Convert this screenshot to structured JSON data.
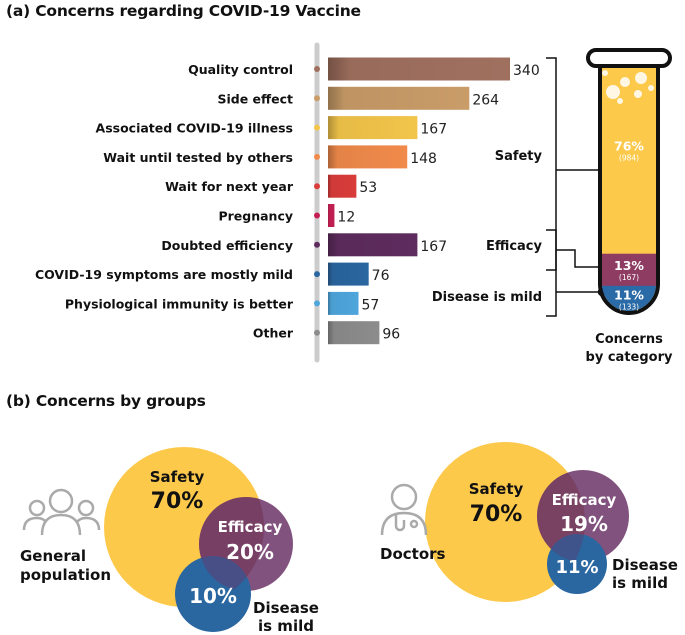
{
  "panel_a_title": "(a) Concerns regarding COVID-19 Vaccine",
  "panel_b_title": "(b) Concerns by groups",
  "chart_data": [
    {
      "type": "bar",
      "orientation": "horizontal",
      "title": "Concerns regarding COVID-19 Vaccine",
      "categories": [
        "Quality control",
        "Side effect",
        "Associated COVID-19 illness",
        "Wait until tested by others",
        "Wait for next year",
        "Pregnancy",
        "Doubted efficiency",
        "COVID-19 symptoms are mostly mild",
        "Physiological immunity is better",
        "Other"
      ],
      "values": [
        340,
        264,
        167,
        148,
        53,
        12,
        167,
        76,
        57,
        96
      ],
      "colors": [
        "#a0705f",
        "#c99c68",
        "#f2c54a",
        "#f08a4b",
        "#d93c3a",
        "#c41f52",
        "#5e2c5e",
        "#2a66a0",
        "#4ea6dc",
        "#8c8c8c"
      ],
      "xlim": [
        0,
        340
      ]
    },
    {
      "type": "bar",
      "title": "Concerns by category",
      "caption_line1": "Concerns",
      "caption_line2": "by category",
      "categories": [
        "Safety",
        "Efficacy",
        "Disease is mild"
      ],
      "percent_labels": [
        "76%",
        "13%",
        "11%"
      ],
      "count_labels": [
        "(984)",
        "(167)",
        "(133)"
      ],
      "percents": [
        76,
        13,
        11
      ],
      "counts": [
        984,
        167,
        133
      ],
      "colors": [
        "#fcc94b",
        "#8e3c62",
        "#2a6aa6"
      ]
    },
    {
      "type": "venn",
      "group": "General population",
      "group_line1": "General",
      "group_line2": "population",
      "sets": [
        {
          "name": "Safety",
          "percent": 70,
          "percent_label": "70%",
          "color": "#fcc94b"
        },
        {
          "name": "Efficacy",
          "percent": 20,
          "percent_label": "20%",
          "color": "#6b3466"
        },
        {
          "name": "Disease is mild",
          "name_line1": "Disease",
          "name_line2": "is mild",
          "percent": 10,
          "percent_label": "10%",
          "color": "#2a66a0"
        }
      ]
    },
    {
      "type": "venn",
      "group": "Doctors",
      "sets": [
        {
          "name": "Safety",
          "percent": 70,
          "percent_label": "70%",
          "color": "#fcc94b"
        },
        {
          "name": "Efficacy",
          "percent": 19,
          "percent_label": "19%",
          "color": "#6b3466"
        },
        {
          "name": "Disease is mild",
          "name_line1": "Disease",
          "name_line2": "is mild",
          "percent": 11,
          "percent_label": "11%",
          "color": "#2a66a0"
        }
      ]
    }
  ]
}
